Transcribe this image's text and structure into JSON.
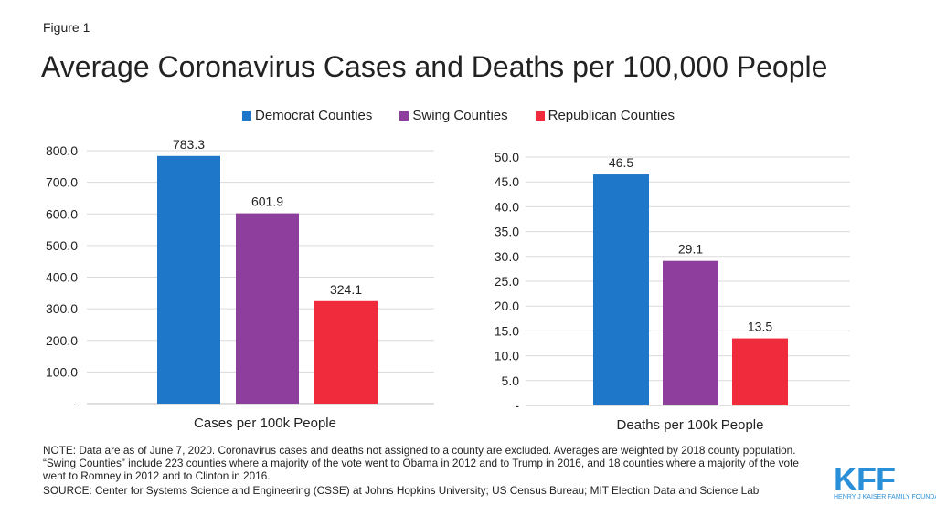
{
  "figure_label": "Figure 1",
  "title": "Average Coronavirus Cases and Deaths per 100,000 People",
  "legend": [
    {
      "label": "Democrat Counties",
      "color": "#1f77c9"
    },
    {
      "label": "Swing Counties",
      "color": "#8e3f9e"
    },
    {
      "label": "Republican Counties",
      "color": "#ef2b3c"
    }
  ],
  "chart_data": [
    {
      "type": "bar",
      "categories": [
        "Cases per 100k People"
      ],
      "series": [
        {
          "name": "Democrat Counties",
          "values": [
            783.3
          ]
        },
        {
          "name": "Swing Counties",
          "values": [
            601.9
          ]
        },
        {
          "name": "Republican Counties",
          "values": [
            324.1
          ]
        }
      ],
      "data_labels": [
        "783.3",
        "601.9",
        "324.1"
      ],
      "xlabel": "Cases per 100k People",
      "ylabel": "",
      "ylim": [
        0,
        800
      ],
      "yticks": [
        0,
        100,
        200,
        300,
        400,
        500,
        600,
        700,
        800
      ],
      "ytick_labels": [
        "-",
        "100.0",
        "200.0",
        "300.0",
        "400.0",
        "500.0",
        "600.0",
        "700.0",
        "800.0"
      ],
      "grid": true,
      "legend_position": "top"
    },
    {
      "type": "bar",
      "categories": [
        "Deaths per 100k People"
      ],
      "series": [
        {
          "name": "Democrat Counties",
          "values": [
            46.5
          ]
        },
        {
          "name": "Swing Counties",
          "values": [
            29.1
          ]
        },
        {
          "name": "Republican Counties",
          "values": [
            13.5
          ]
        }
      ],
      "data_labels": [
        "46.5",
        "29.1",
        "13.5"
      ],
      "xlabel": "Deaths per 100k People",
      "ylabel": "",
      "ylim": [
        0,
        50
      ],
      "yticks": [
        0,
        5,
        10,
        15,
        20,
        25,
        30,
        35,
        40,
        45,
        50
      ],
      "ytick_labels": [
        "-",
        "5.0",
        "10.0",
        "15.0",
        "20.0",
        "25.0",
        "30.0",
        "35.0",
        "40.0",
        "45.0",
        "50.0"
      ],
      "grid": true,
      "legend_position": "top"
    }
  ],
  "note": "NOTE: Data are as of June 7, 2020. Coronavirus cases and deaths not assigned to a county  are excluded. Averages are weighted by 2018 county population. “Swing Counties” include 223 counties where a majority of the vote went to Obama in 2012 and to Trump  in 2016, and 18 counties where a majority of the vote went to Romney in 2012 and to Clinton in 2016.",
  "source": "SOURCE: Center for Systems Science and Engineering (CSSE) at Johns Hopkins University;  US Census Bureau; MIT Election Data and Science Lab",
  "logo": {
    "mark": "KFF",
    "sub": "Henry J Kaiser Family Foundation"
  }
}
